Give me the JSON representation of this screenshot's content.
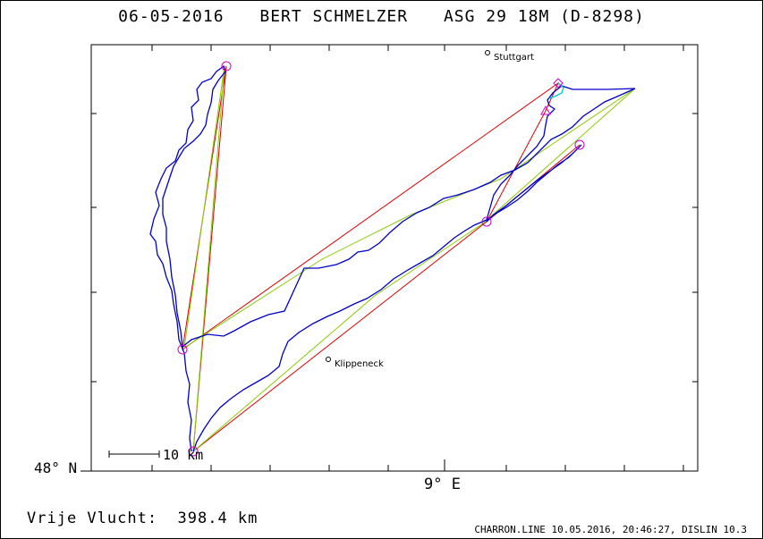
{
  "header": {
    "date": "06-05-2016",
    "pilot": "BERT SCHMELZER",
    "glider": "ASG 29 18M (D-8298)"
  },
  "axes": {
    "lat_label": "48° N",
    "lon_label": "9° E"
  },
  "scale_bar": {
    "label": "10 km"
  },
  "towns": [
    {
      "name": "Stuttgart"
    },
    {
      "name": "Klippeneck"
    }
  ],
  "footer": {
    "distance_text": "Vrije Vlucht:  398.4 km",
    "software_text": "CHARRON.LINE 10.05.2016, 20:46:27, DISLIN 10.3"
  },
  "colors": {
    "track": "#0000cc",
    "task_line": "#dd0000",
    "optimized_line": "#88cc00",
    "turnpoint": "#cc00cc",
    "final_glide": "#00cccc"
  }
}
